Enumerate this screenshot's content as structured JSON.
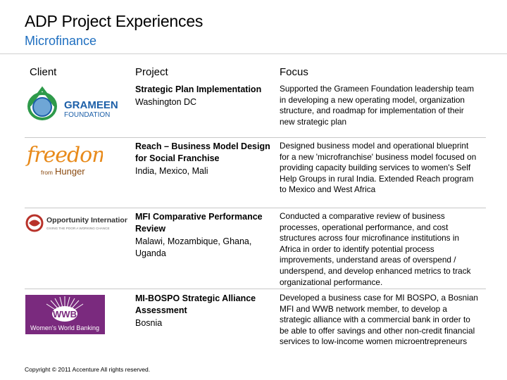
{
  "header": {
    "title": "ADP Project Experiences",
    "subtitle": "Microfinance"
  },
  "columns": {
    "client": "Client",
    "project": "Project",
    "focus": "Focus"
  },
  "rows": [
    {
      "client_logo": "grameen-foundation-logo",
      "logo_text": [
        "GRAMEEN",
        "FOUNDATION"
      ],
      "project_name": "Strategic Plan Implementation",
      "location": "Washington DC",
      "focus": "Supported the Grameen Foundation leadership team in developing a new operating model, organization structure, and roadmap for implementation of their new strategic plan"
    },
    {
      "client_logo": "freedom-from-hunger-logo",
      "logo_text": [
        "freedom",
        "from",
        "Hunger"
      ],
      "project_name": "Reach – Business Model Design for Social Franchise",
      "location": "India, Mexico, Mali",
      "focus": "Designed business model and operational blueprint for a new 'microfranchise' business model focused on providing capacity building services to women's Self Help Groups in rural India.  Extended Reach program to Mexico and West Africa"
    },
    {
      "client_logo": "opportunity-international-logo",
      "logo_text": [
        "Opportunity International",
        "GIVING THE POOR A WORKING CHANCE"
      ],
      "project_name": "MFI Comparative Performance Review",
      "location": "Malawi, Mozambique, Ghana, Uganda",
      "focus": "Conducted a comparative review of business processes, operational performance, and cost structures across four microfinance institutions in Africa in order to identify potential process improvements, understand areas of overspend / underspend, and develop enhanced metrics to track organizational performance."
    },
    {
      "client_logo": "womens-world-banking-logo",
      "logo_text": [
        "WWB",
        "Women's World Banking"
      ],
      "project_name": "MI-BOSPO Strategic Alliance Assessment",
      "location": "Bosnia",
      "focus": "Developed a business case for MI BOSPO, a Bosnian MFI and WWB network member, to develop a strategic alliance with a commercial bank in order to be able to offer savings and other non-credit financial services to low-income women microentrepreneurs"
    }
  ],
  "footer": "Copyright © 2011 Accenture  All rights reserved.",
  "colors": {
    "subtitle": "#1f6fc0",
    "grameen_green": "#2e9a4a",
    "grameen_blue": "#1c5fa8",
    "freedom_orange": "#e88a1a",
    "opportunity_red": "#b8322a",
    "wwb_purple": "#7a2a7e"
  }
}
